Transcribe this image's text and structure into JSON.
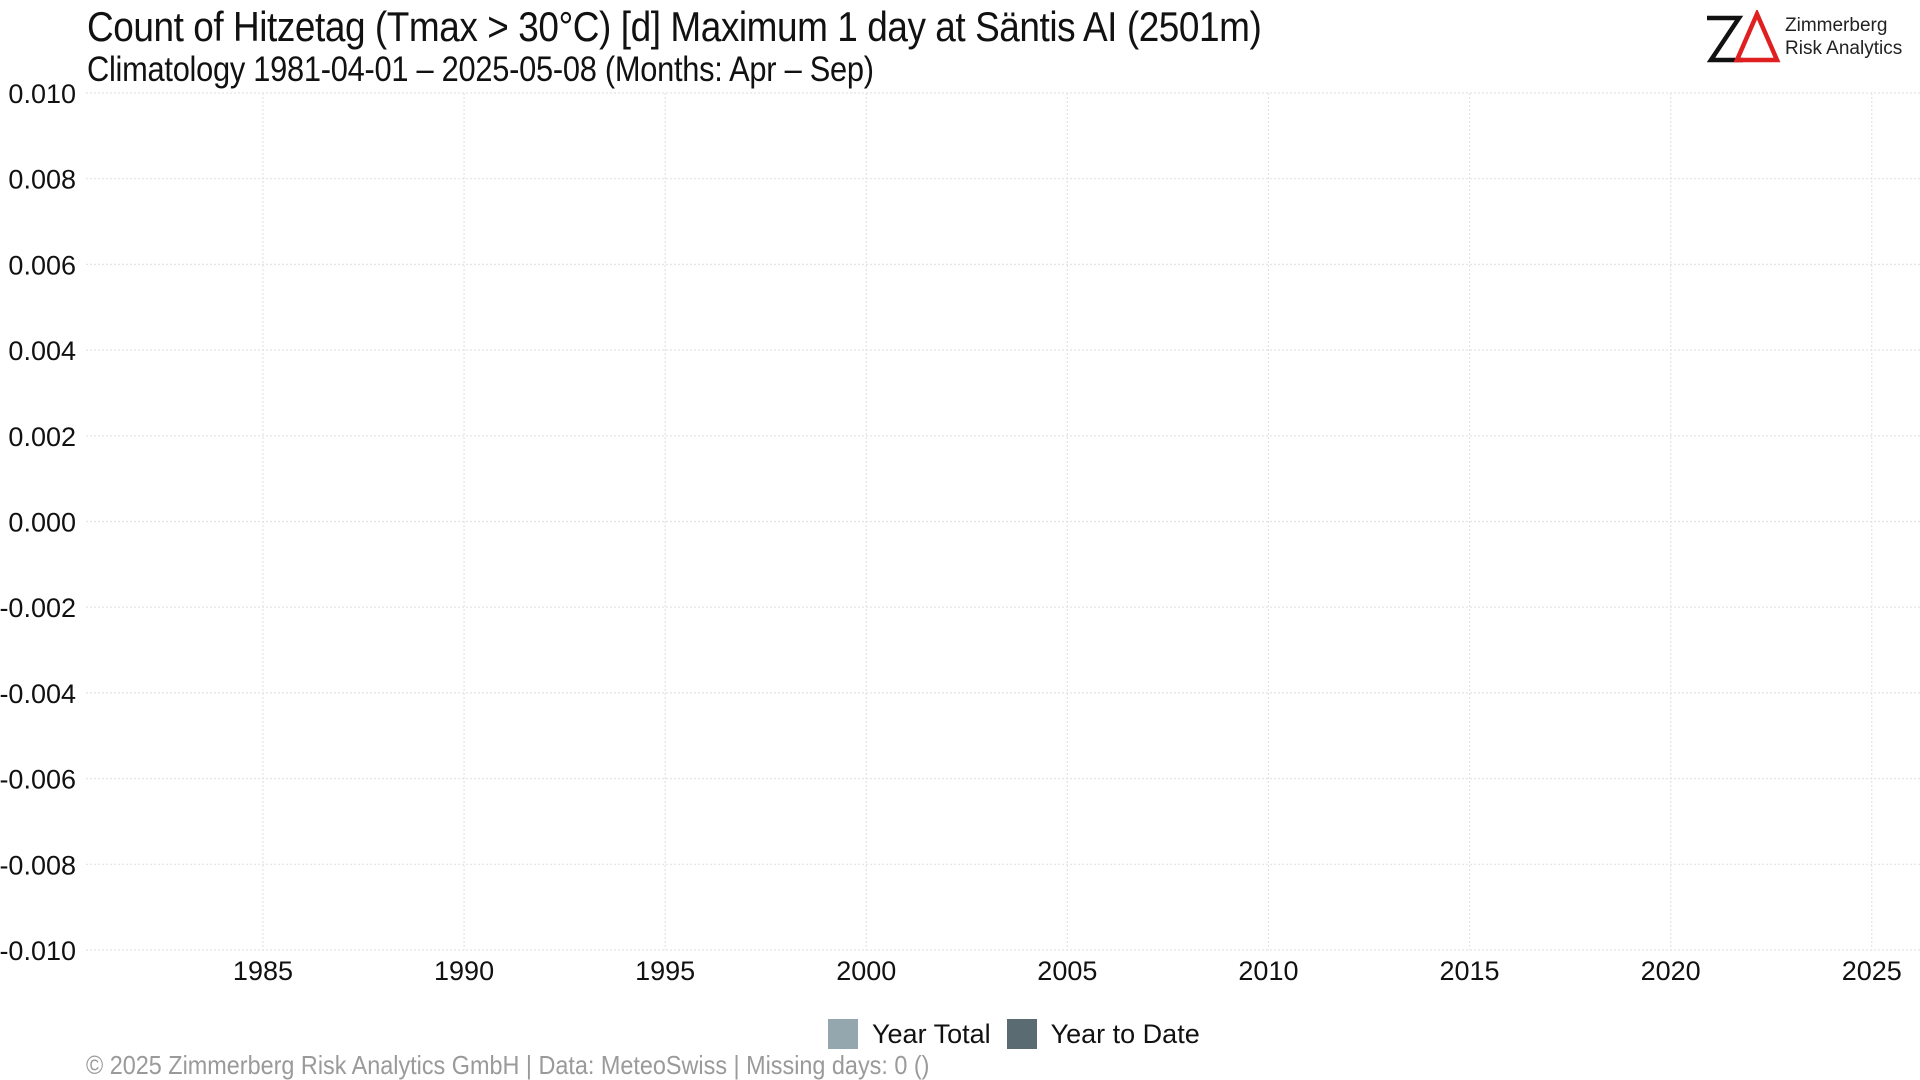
{
  "header": {
    "title": "Count of Hitzetag (Tmax > 30°C) [d] Maximum 1 day at Säntis  AI (2501m)",
    "subtitle": "Climatology 1981-04-01 – 2025-05-08 (Months: Apr – Sep)"
  },
  "logo": {
    "line1": "Zimmerberg",
    "line2": "Risk Analytics",
    "icon": "za-logo-icon",
    "accent_color": "#e02020"
  },
  "footer": {
    "text": "©  2025 Zimmerberg Risk Analytics GmbH | Data: MeteoSwiss | Missing days: 0 ()"
  },
  "chart_data": {
    "type": "bar",
    "title": "Count of Hitzetag (Tmax > 30°C) [d] Maximum 1 day at Säntis  AI (2501m)",
    "subtitle": "Climatology 1981-04-01 – 2025-05-08 (Months: Apr – Sep)",
    "xlabel": "",
    "ylabel": "",
    "xlim": [
      1980.6,
      2026.2
    ],
    "ylim": [
      -0.01,
      0.01
    ],
    "x_ticks": [
      1985,
      1990,
      1995,
      2000,
      2005,
      2010,
      2015,
      2020,
      2025
    ],
    "x_tick_labels": [
      "1985",
      "1990",
      "1995",
      "2000",
      "2005",
      "2010",
      "2015",
      "2020",
      "2025"
    ],
    "y_ticks": [
      0.01,
      0.008,
      0.006,
      0.004,
      0.002,
      0.0,
      -0.002,
      -0.004,
      -0.006,
      -0.008,
      -0.01
    ],
    "y_tick_labels": [
      "0.010",
      "0.008",
      "0.006",
      "0.004",
      "0.002",
      "0.000",
      "-0.002",
      "-0.004",
      "-0.006",
      "-0.008",
      "-0.010"
    ],
    "grid": true,
    "legend_position": "bottom",
    "series": [
      {
        "name": "Year Total",
        "color": "#94a7ae",
        "values": []
      },
      {
        "name": "Year to Date",
        "color": "#5a6b72",
        "values": []
      }
    ]
  }
}
